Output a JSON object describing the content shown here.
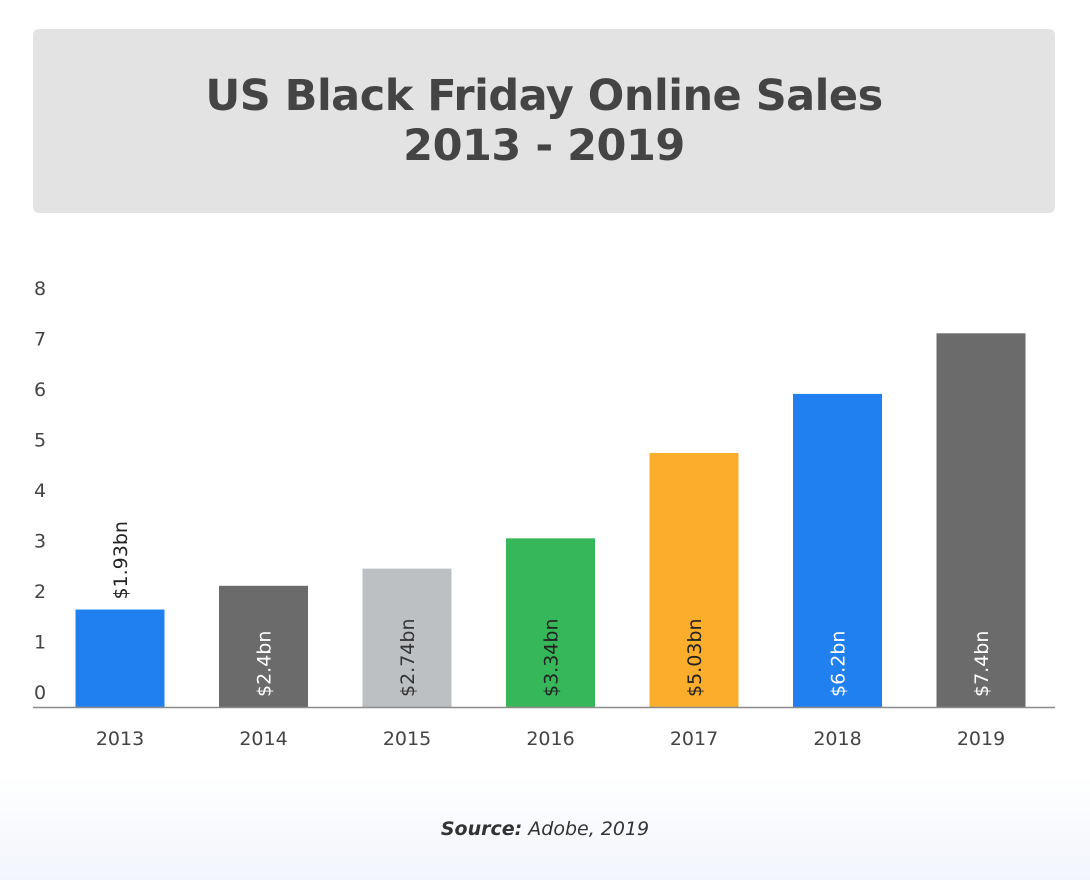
{
  "header": {
    "title_line1": "US Black Friday Online Sales",
    "title_line2": "2013 - 2019"
  },
  "chart_data": {
    "type": "bar",
    "categories": [
      "2013",
      "2014",
      "2015",
      "2016",
      "2017",
      "2018",
      "2019"
    ],
    "values": [
      1.93,
      2.4,
      2.74,
      3.34,
      5.03,
      6.2,
      7.4
    ],
    "data_labels": [
      "$1.93bn",
      "$2.4bn",
      "$2.74bn",
      "$3.34bn",
      "$5.03bn",
      "$6.2bn",
      "$7.4bn"
    ],
    "colors": [
      "#2080f0",
      "#6b6b6b",
      "#bdc0c3",
      "#36b85a",
      "#fbad2c",
      "#2080f0",
      "#6b6b6b"
    ],
    "label_colors": [
      "#222222",
      "#ffffff",
      "#333333",
      "#222222",
      "#222222",
      "#ffffff",
      "#ffffff"
    ],
    "y_ticks": [
      0,
      1,
      2,
      3,
      4,
      5,
      6,
      7,
      8
    ],
    "ylim": [
      0,
      8
    ],
    "grid": false,
    "title": "US Black Friday Online Sales 2013 - 2019"
  },
  "footer": {
    "source_label": "Source:",
    "source_text": "Adobe, 2019"
  }
}
